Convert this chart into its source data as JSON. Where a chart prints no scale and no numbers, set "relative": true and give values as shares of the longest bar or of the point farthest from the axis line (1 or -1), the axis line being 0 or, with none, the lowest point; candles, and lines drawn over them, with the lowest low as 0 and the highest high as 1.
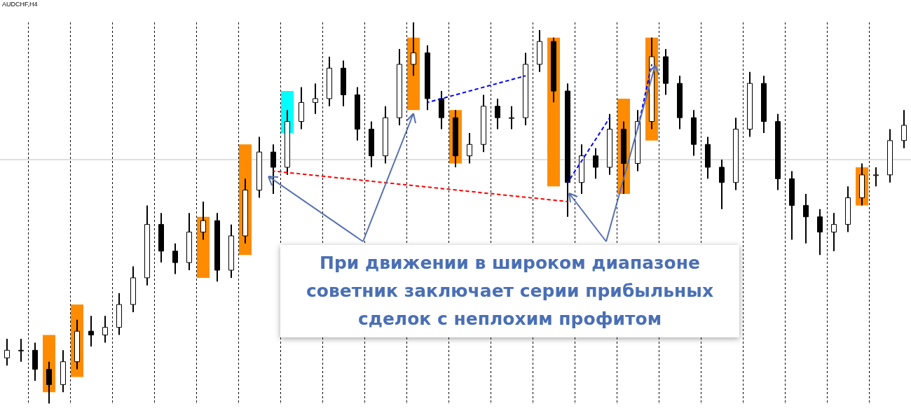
{
  "chart_data": {
    "type": "candlestick",
    "title": "AUDCHF,H4",
    "relative": true,
    "grid": "x",
    "marker": "none",
    "categories": [
      null,
      null,
      null,
      null,
      null,
      null,
      null,
      null,
      null,
      null,
      null,
      null,
      null,
      null,
      null,
      null,
      null,
      null,
      null,
      null,
      null,
      null,
      null,
      null,
      null,
      null,
      null,
      null,
      null,
      null,
      null,
      null,
      null,
      null,
      null,
      null,
      null,
      null,
      null,
      null,
      null,
      null,
      null,
      null,
      null,
      null,
      null,
      null,
      null,
      null,
      null,
      null,
      null,
      null,
      null,
      null,
      null,
      null,
      null,
      null,
      null,
      null,
      null,
      null,
      null
    ],
    "ohlc": [
      [
        0.12,
        0.17,
        0.1,
        0.14
      ],
      [
        0.14,
        0.17,
        0.11,
        0.14
      ],
      [
        0.14,
        0.16,
        0.06,
        0.09
      ],
      [
        0.09,
        0.11,
        0.0,
        0.05
      ],
      [
        0.05,
        0.14,
        0.03,
        0.11
      ],
      [
        0.11,
        0.22,
        0.09,
        0.19
      ],
      [
        0.19,
        0.23,
        0.15,
        0.18
      ],
      [
        0.18,
        0.23,
        0.16,
        0.2
      ],
      [
        0.2,
        0.29,
        0.18,
        0.26
      ],
      [
        0.26,
        0.36,
        0.24,
        0.33
      ],
      [
        0.33,
        0.52,
        0.31,
        0.47
      ],
      [
        0.47,
        0.5,
        0.37,
        0.4
      ],
      [
        0.4,
        0.42,
        0.34,
        0.37
      ],
      [
        0.37,
        0.5,
        0.35,
        0.45
      ],
      [
        0.45,
        0.53,
        0.43,
        0.48
      ],
      [
        0.48,
        0.5,
        0.32,
        0.35
      ],
      [
        0.35,
        0.47,
        0.33,
        0.44
      ],
      [
        0.44,
        0.59,
        0.42,
        0.56
      ],
      [
        0.56,
        0.7,
        0.54,
        0.66
      ],
      [
        0.66,
        0.68,
        0.55,
        0.62
      ],
      [
        0.62,
        0.77,
        0.6,
        0.74
      ],
      [
        0.74,
        0.83,
        0.72,
        0.79
      ],
      [
        0.79,
        0.84,
        0.76,
        0.8
      ],
      [
        0.8,
        0.91,
        0.78,
        0.88
      ],
      [
        0.88,
        0.9,
        0.78,
        0.81
      ],
      [
        0.81,
        0.83,
        0.69,
        0.72
      ],
      [
        0.72,
        0.74,
        0.62,
        0.65
      ],
      [
        0.65,
        0.78,
        0.63,
        0.75
      ],
      [
        0.75,
        0.93,
        0.73,
        0.89
      ],
      [
        0.89,
        1.0,
        0.86,
        0.92
      ],
      [
        0.92,
        0.94,
        0.77,
        0.8
      ],
      [
        0.8,
        0.82,
        0.72,
        0.75
      ],
      [
        0.75,
        0.77,
        0.62,
        0.65
      ],
      [
        0.65,
        0.71,
        0.63,
        0.68
      ],
      [
        0.68,
        0.81,
        0.66,
        0.78
      ],
      [
        0.78,
        0.8,
        0.72,
        0.75
      ],
      [
        0.75,
        0.78,
        0.72,
        0.75
      ],
      [
        0.75,
        0.92,
        0.73,
        0.89
      ],
      [
        0.89,
        0.98,
        0.87,
        0.95
      ],
      [
        0.95,
        0.96,
        0.79,
        0.82
      ],
      [
        0.82,
        0.84,
        0.49,
        0.58
      ],
      [
        0.58,
        0.68,
        0.55,
        0.65
      ],
      [
        0.65,
        0.67,
        0.59,
        0.62
      ],
      [
        0.62,
        0.76,
        0.6,
        0.72
      ],
      [
        0.72,
        0.74,
        0.55,
        0.63
      ],
      [
        0.63,
        0.77,
        0.61,
        0.74
      ],
      [
        0.74,
        0.96,
        0.72,
        0.91
      ],
      [
        0.91,
        0.93,
        0.81,
        0.84
      ],
      [
        0.84,
        0.86,
        0.72,
        0.75
      ],
      [
        0.75,
        0.77,
        0.65,
        0.68
      ],
      [
        0.68,
        0.7,
        0.59,
        0.62
      ],
      [
        0.62,
        0.64,
        0.51,
        0.58
      ],
      [
        0.58,
        0.75,
        0.56,
        0.72
      ],
      [
        0.72,
        0.87,
        0.7,
        0.84
      ],
      [
        0.84,
        0.86,
        0.71,
        0.74
      ],
      [
        0.74,
        0.76,
        0.56,
        0.59
      ],
      [
        0.59,
        0.61,
        0.43,
        0.52
      ],
      [
        0.52,
        0.55,
        0.42,
        0.49
      ],
      [
        0.49,
        0.51,
        0.39,
        0.45
      ],
      [
        0.45,
        0.5,
        0.4,
        0.47
      ],
      [
        0.47,
        0.57,
        0.45,
        0.54
      ],
      [
        0.54,
        0.63,
        0.52,
        0.6
      ],
      [
        0.6,
        0.62,
        0.57,
        0.6
      ],
      [
        0.6,
        0.72,
        0.58,
        0.69
      ],
      [
        0.69,
        0.77,
        0.67,
        0.73
      ]
    ],
    "series": [
      {
        "type": "bar",
        "color": "#ff8c00",
        "values": [
          null,
          null,
          null,
          0.15,
          null,
          0.19,
          null,
          null,
          null,
          null,
          null,
          null,
          null,
          null,
          0.16,
          null,
          null,
          0.29,
          null,
          null,
          null,
          null,
          null,
          null,
          null,
          null,
          null,
          null,
          null,
          0.19,
          null,
          null,
          0.14,
          null,
          null,
          null,
          null,
          null,
          null,
          0.39,
          null,
          null,
          null,
          null,
          0.25,
          null,
          0.27,
          null,
          null,
          null,
          null,
          null,
          null,
          null,
          null,
          null,
          null,
          null,
          null,
          null,
          null,
          0.1,
          null,
          null,
          null
        ],
        "base": [
          null,
          null,
          null,
          0.03,
          null,
          0.07,
          null,
          null,
          null,
          null,
          null,
          null,
          null,
          null,
          0.33,
          null,
          null,
          0.39,
          null,
          null,
          null,
          null,
          null,
          null,
          null,
          null,
          null,
          null,
          null,
          0.77,
          null,
          null,
          0.63,
          null,
          null,
          null,
          null,
          null,
          null,
          0.57,
          null,
          null,
          null,
          null,
          0.55,
          null,
          0.69,
          null,
          null,
          null,
          null,
          null,
          null,
          null,
          null,
          null,
          null,
          null,
          null,
          null,
          null,
          0.52,
          null,
          null,
          null
        ]
      },
      {
        "type": "bar",
        "color": "#00ffff",
        "values": [
          null,
          null,
          null,
          null,
          null,
          null,
          null,
          null,
          null,
          null,
          null,
          null,
          null,
          null,
          null,
          null,
          null,
          null,
          null,
          null,
          0.11,
          null,
          null,
          null,
          null,
          null,
          null,
          null,
          null,
          null,
          null,
          null,
          null,
          null,
          null,
          null,
          null,
          null,
          null,
          null,
          null,
          null,
          null,
          null,
          null,
          null,
          null,
          null,
          null,
          null,
          null,
          null,
          null,
          null,
          null,
          null,
          null,
          null,
          null,
          null,
          null,
          null,
          null,
          null,
          null
        ],
        "base": [
          null,
          null,
          null,
          null,
          null,
          null,
          null,
          null,
          null,
          null,
          null,
          null,
          null,
          null,
          null,
          null,
          null,
          null,
          null,
          null,
          0.71,
          null,
          null,
          null,
          null,
          null,
          null,
          null,
          null,
          null,
          null,
          null,
          null,
          null,
          null,
          null,
          null,
          null,
          null,
          null,
          null,
          null,
          null,
          null,
          null,
          null,
          null,
          null,
          null,
          null,
          null,
          null,
          null,
          null,
          null,
          null,
          null,
          null,
          null,
          null,
          null,
          null,
          null,
          null,
          null
        ]
      },
      {
        "type": "line",
        "color": "#ff0000",
        "line_style": "dashed",
        "values": [
          null,
          null,
          null,
          null,
          null,
          null,
          null,
          null,
          null,
          null,
          null,
          null,
          null,
          null,
          null,
          null,
          null,
          null,
          null,
          0.61,
          null,
          null,
          null,
          null,
          null,
          null,
          null,
          null,
          null,
          null,
          null,
          null,
          null,
          null,
          null,
          null,
          null,
          null,
          null,
          null,
          0.53,
          null,
          null,
          null,
          null,
          null,
          null,
          null,
          null,
          null,
          null,
          null,
          null,
          null,
          null,
          null,
          null,
          null,
          null,
          null,
          null,
          null,
          null,
          null,
          null
        ]
      },
      {
        "type": "line",
        "color": "#0000ff",
        "line_style": "dashed",
        "values": [
          null,
          null,
          null,
          null,
          null,
          null,
          null,
          null,
          null,
          null,
          null,
          null,
          null,
          null,
          null,
          null,
          null,
          null,
          null,
          null,
          null,
          null,
          null,
          null,
          null,
          null,
          null,
          null,
          null,
          null,
          0.79,
          null,
          null,
          null,
          null,
          null,
          null,
          0.86,
          null,
          null,
          null,
          null,
          null,
          null,
          null,
          null,
          null,
          null,
          null,
          null,
          null,
          null,
          null,
          null,
          null,
          null,
          null,
          null,
          null,
          null,
          null,
          null,
          null,
          null,
          null
        ]
      },
      {
        "type": "line",
        "color": "#0000ff",
        "line_style": "dashed",
        "values": [
          null,
          null,
          null,
          null,
          null,
          null,
          null,
          null,
          null,
          null,
          null,
          null,
          null,
          null,
          null,
          null,
          null,
          null,
          null,
          null,
          null,
          null,
          null,
          null,
          null,
          null,
          null,
          null,
          null,
          null,
          null,
          null,
          null,
          null,
          null,
          null,
          null,
          null,
          null,
          null,
          0.58,
          null,
          null,
          0.75,
          null,
          null,
          null,
          null,
          null,
          null,
          null,
          null,
          null,
          null,
          null,
          null,
          null,
          null,
          null,
          null,
          null,
          null,
          null,
          null,
          null
        ]
      },
      {
        "type": "line",
        "color": "#0000ff",
        "line_style": "dashed",
        "values": [
          null,
          null,
          null,
          null,
          null,
          null,
          null,
          null,
          null,
          null,
          null,
          null,
          null,
          null,
          null,
          null,
          null,
          null,
          null,
          null,
          null,
          null,
          null,
          null,
          null,
          null,
          null,
          null,
          null,
          null,
          null,
          null,
          null,
          null,
          null,
          null,
          null,
          null,
          null,
          null,
          null,
          null,
          null,
          null,
          null,
          0.72,
          0.89,
          null,
          null,
          null,
          null,
          null,
          null,
          null,
          null,
          null,
          null,
          null,
          null,
          null,
          null,
          null,
          null,
          null,
          null
        ]
      }
    ],
    "ref_lines": [
      {
        "axis": "y",
        "value": 0.64,
        "color": "#c0c0c0"
      }
    ],
    "annotations": [
      "При движении в широком диапазоне советник заключает серии прибыльных сделок с неплохим профитом"
    ]
  }
}
